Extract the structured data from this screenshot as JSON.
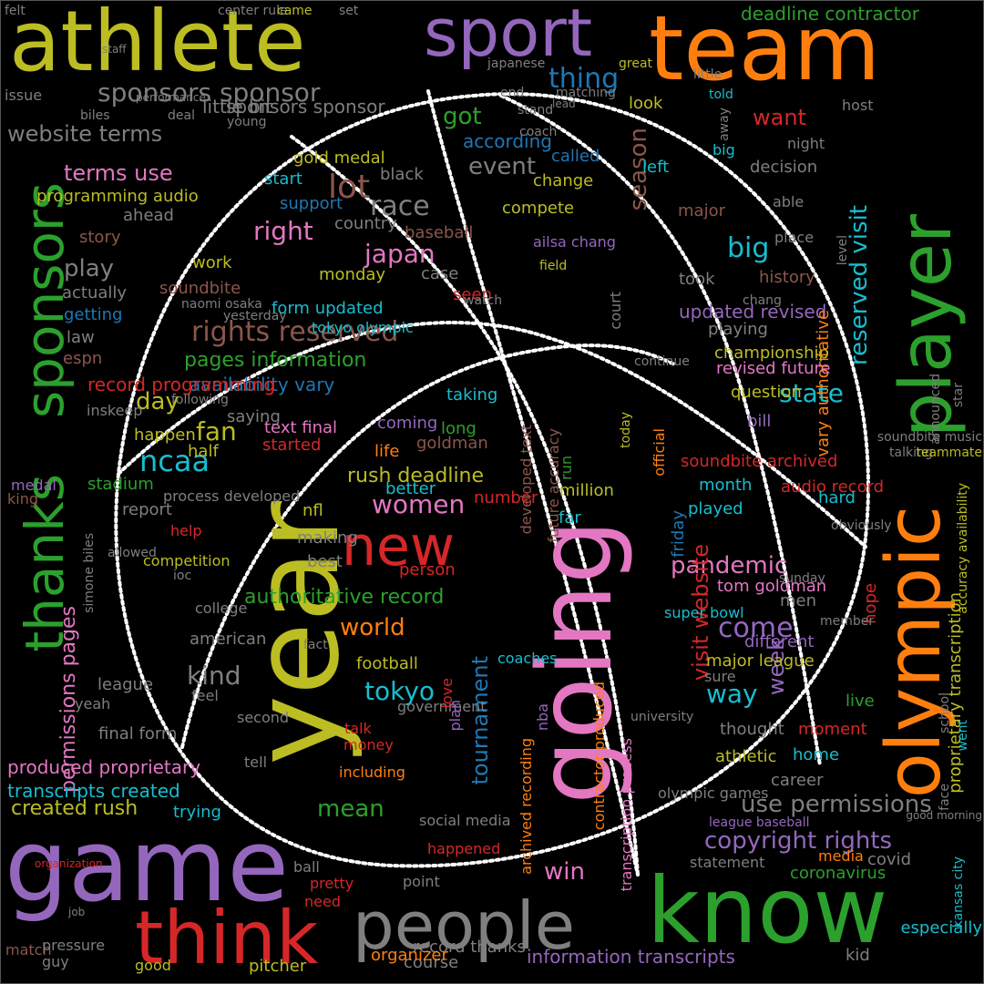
{
  "colors": {
    "background": "#000000",
    "outline": "#ffffff",
    "palette": [
      "#bcbd22",
      "#9467bd",
      "#ff7f0e",
      "#2ca02c",
      "#e377c2",
      "#d62728",
      "#7f7f7f",
      "#17becf",
      "#8c564b",
      "#1f77b4"
    ]
  },
  "mask_shape": "basketball",
  "words": [
    {
      "text": "athlete",
      "color": "#bcbd22"
    },
    {
      "text": "sport",
      "color": "#9467bd"
    },
    {
      "text": "team",
      "color": "#ff7f0e"
    },
    {
      "text": "player",
      "color": "#2ca02c"
    },
    {
      "text": "olympic",
      "color": "#ff7f0e"
    },
    {
      "text": "sponsors",
      "color": "#2ca02c"
    },
    {
      "text": "thanks",
      "color": "#2ca02c"
    },
    {
      "text": "year",
      "color": "#bcbd22"
    },
    {
      "text": "going",
      "color": "#e377c2"
    },
    {
      "text": "new",
      "color": "#d62728"
    },
    {
      "text": "game",
      "color": "#9467bd"
    },
    {
      "text": "think",
      "color": "#d62728"
    },
    {
      "text": "people",
      "color": "#7f7f7f"
    },
    {
      "text": "know",
      "color": "#2ca02c"
    },
    {
      "text": "sponsors sponsor",
      "color": "#7f7f7f"
    },
    {
      "text": "website terms",
      "color": "#7f7f7f"
    },
    {
      "text": "terms use",
      "color": "#e377c2"
    },
    {
      "text": "thing",
      "color": "#1f77b4"
    },
    {
      "text": "got",
      "color": "#2ca02c"
    },
    {
      "text": "want",
      "color": "#d62728"
    },
    {
      "text": "lot",
      "color": "#8c564b"
    },
    {
      "text": "race",
      "color": "#7f7f7f"
    },
    {
      "text": "event",
      "color": "#7f7f7f"
    },
    {
      "text": "right",
      "color": "#e377c2"
    },
    {
      "text": "japan",
      "color": "#e377c2"
    },
    {
      "text": "play",
      "color": "#7f7f7f"
    },
    {
      "text": "rights reserved",
      "color": "#8c564b"
    },
    {
      "text": "pages information",
      "color": "#2ca02c"
    },
    {
      "text": "availability vary",
      "color": "#1f77b4"
    },
    {
      "text": "day",
      "color": "#bcbd22"
    },
    {
      "text": "fan",
      "color": "#bcbd22"
    },
    {
      "text": "ncaa",
      "color": "#17becf"
    },
    {
      "text": "women",
      "color": "#e377c2"
    },
    {
      "text": "rush deadline",
      "color": "#bcbd22"
    },
    {
      "text": "season",
      "color": "#8c564b"
    },
    {
      "text": "reserved visit",
      "color": "#17becf"
    },
    {
      "text": "big",
      "color": "#17becf"
    },
    {
      "text": "state",
      "color": "#17becf"
    },
    {
      "text": "pandemic",
      "color": "#e377c2"
    },
    {
      "text": "world",
      "color": "#ff7f0e"
    },
    {
      "text": "come",
      "color": "#9467bd"
    },
    {
      "text": "kind",
      "color": "#7f7f7f"
    },
    {
      "text": "tokyo",
      "color": "#17becf"
    },
    {
      "text": "way",
      "color": "#17becf"
    },
    {
      "text": "week",
      "color": "#9467bd"
    },
    {
      "text": "tournament",
      "color": "#1f77b4"
    },
    {
      "text": "visit website",
      "color": "#d62728"
    },
    {
      "text": "permissions pages",
      "color": "#e377c2"
    },
    {
      "text": "copyright rights",
      "color": "#9467bd"
    },
    {
      "text": "use permissions",
      "color": "#7f7f7f"
    },
    {
      "text": "win",
      "color": "#e377c2"
    },
    {
      "text": "mean",
      "color": "#2ca02c"
    },
    {
      "text": "transcripts created",
      "color": "#17becf"
    },
    {
      "text": "created rush",
      "color": "#bcbd22"
    },
    {
      "text": "produced proprietary",
      "color": "#e377c2"
    },
    {
      "text": "information transcripts",
      "color": "#9467bd"
    },
    {
      "text": "proprietary transcription",
      "color": "#bcbd22"
    },
    {
      "text": "authoritative record",
      "color": "#2ca02c"
    },
    {
      "text": "updated revised",
      "color": "#9467bd"
    },
    {
      "text": "vary authoritative",
      "color": "#ff7f0e"
    },
    {
      "text": "record programming",
      "color": "#d62728"
    },
    {
      "text": "programming audio",
      "color": "#bcbd22"
    },
    {
      "text": "gold medal",
      "color": "#bcbd22"
    },
    {
      "text": "deadline contractor",
      "color": "#2ca02c"
    },
    {
      "text": "sponsors sponsor",
      "color": "#7f7f7f"
    },
    {
      "text": "little bit",
      "color": "#7f7f7f"
    },
    {
      "text": "look",
      "color": "#bcbd22"
    },
    {
      "text": "change",
      "color": "#bcbd22"
    },
    {
      "text": "according",
      "color": "#1f77b4"
    },
    {
      "text": "called",
      "color": "#1f77b4"
    },
    {
      "text": "left",
      "color": "#17becf"
    },
    {
      "text": "major",
      "color": "#8c564b"
    },
    {
      "text": "decision",
      "color": "#7f7f7f"
    },
    {
      "text": "compete",
      "color": "#bcbd22"
    },
    {
      "text": "baseball",
      "color": "#8c564b"
    },
    {
      "text": "country",
      "color": "#7f7f7f"
    },
    {
      "text": "support",
      "color": "#1f77b4"
    },
    {
      "text": "start",
      "color": "#17becf"
    },
    {
      "text": "black",
      "color": "#7f7f7f"
    },
    {
      "text": "ahead",
      "color": "#7f7f7f"
    },
    {
      "text": "story",
      "color": "#8c564b"
    },
    {
      "text": "actually",
      "color": "#7f7f7f"
    },
    {
      "text": "getting",
      "color": "#1f77b4"
    },
    {
      "text": "law",
      "color": "#7f7f7f"
    },
    {
      "text": "espn",
      "color": "#8c564b"
    },
    {
      "text": "inskeep",
      "color": "#7f7f7f"
    },
    {
      "text": "soundbite",
      "color": "#8c564b"
    },
    {
      "text": "work",
      "color": "#bcbd22"
    },
    {
      "text": "form updated",
      "color": "#17becf"
    },
    {
      "text": "tokyo olympic",
      "color": "#17becf"
    },
    {
      "text": "monday",
      "color": "#bcbd22"
    },
    {
      "text": "case",
      "color": "#7f7f7f"
    },
    {
      "text": "seen",
      "color": "#d62728"
    },
    {
      "text": "took",
      "color": "#7f7f7f"
    },
    {
      "text": "history",
      "color": "#8c564b"
    },
    {
      "text": "playing",
      "color": "#7f7f7f"
    },
    {
      "text": "championship",
      "color": "#bcbd22"
    },
    {
      "text": "revised future",
      "color": "#e377c2"
    },
    {
      "text": "question",
      "color": "#bcbd22"
    },
    {
      "text": "bill",
      "color": "#9467bd"
    },
    {
      "text": "audio record",
      "color": "#d62728"
    },
    {
      "text": "soundbite archived",
      "color": "#d62728"
    },
    {
      "text": "month",
      "color": "#17becf"
    },
    {
      "text": "hard",
      "color": "#17becf"
    },
    {
      "text": "played",
      "color": "#17becf"
    },
    {
      "text": "super bowl",
      "color": "#17becf"
    },
    {
      "text": "tom goldman",
      "color": "#e377c2"
    },
    {
      "text": "men",
      "color": "#7f7f7f"
    },
    {
      "text": "different",
      "color": "#9467bd"
    },
    {
      "text": "major league",
      "color": "#bcbd22"
    },
    {
      "text": "sure",
      "color": "#7f7f7f"
    },
    {
      "text": "thought",
      "color": "#7f7f7f"
    },
    {
      "text": "athletic",
      "color": "#bcbd22"
    },
    {
      "text": "home",
      "color": "#17becf"
    },
    {
      "text": "moment",
      "color": "#d62728"
    },
    {
      "text": "career",
      "color": "#7f7f7f"
    },
    {
      "text": "statement",
      "color": "#7f7f7f"
    },
    {
      "text": "media",
      "color": "#ff7f0e"
    },
    {
      "text": "covid",
      "color": "#7f7f7f"
    },
    {
      "text": "coronavirus",
      "color": "#2ca02c"
    },
    {
      "text": "live",
      "color": "#2ca02c"
    },
    {
      "text": "hope",
      "color": "#d62728"
    },
    {
      "text": "especially",
      "color": "#17becf"
    },
    {
      "text": "kid",
      "color": "#7f7f7f"
    },
    {
      "text": "record thanks",
      "color": "#7f7f7f"
    },
    {
      "text": "course",
      "color": "#7f7f7f"
    },
    {
      "text": "organizer",
      "color": "#ff7f0e"
    },
    {
      "text": "need",
      "color": "#d62728"
    },
    {
      "text": "pretty",
      "color": "#d62728"
    },
    {
      "text": "ball",
      "color": "#7f7f7f"
    },
    {
      "text": "point",
      "color": "#7f7f7f"
    },
    {
      "text": "happened",
      "color": "#d62728"
    },
    {
      "text": "social media",
      "color": "#7f7f7f"
    },
    {
      "text": "talk",
      "color": "#d62728"
    },
    {
      "text": "money",
      "color": "#d62728"
    },
    {
      "text": "final form",
      "color": "#7f7f7f"
    },
    {
      "text": "second",
      "color": "#7f7f7f"
    },
    {
      "text": "yeah",
      "color": "#7f7f7f"
    },
    {
      "text": "league",
      "color": "#7f7f7f"
    },
    {
      "text": "feel",
      "color": "#7f7f7f"
    },
    {
      "text": "american",
      "color": "#7f7f7f"
    },
    {
      "text": "college",
      "color": "#7f7f7f"
    },
    {
      "text": "king",
      "color": "#8c564b"
    },
    {
      "text": "medal",
      "color": "#9467bd"
    },
    {
      "text": "help",
      "color": "#d62728"
    },
    {
      "text": "report",
      "color": "#7f7f7f"
    },
    {
      "text": "competition",
      "color": "#bcbd22"
    },
    {
      "text": "stadium",
      "color": "#2ca02c"
    },
    {
      "text": "process developed",
      "color": "#7f7f7f"
    },
    {
      "text": "half",
      "color": "#bcbd22"
    },
    {
      "text": "happen",
      "color": "#bcbd22"
    },
    {
      "text": "saying",
      "color": "#7f7f7f"
    },
    {
      "text": "text final",
      "color": "#e377c2"
    },
    {
      "text": "started",
      "color": "#d62728"
    },
    {
      "text": "life",
      "color": "#ff7f0e"
    },
    {
      "text": "goldman",
      "color": "#8c564b"
    },
    {
      "text": "coming",
      "color": "#9467bd"
    },
    {
      "text": "taking",
      "color": "#17becf"
    },
    {
      "text": "long",
      "color": "#2ca02c"
    },
    {
      "text": "nfl",
      "color": "#bcbd22"
    },
    {
      "text": "making",
      "color": "#7f7f7f"
    },
    {
      "text": "best",
      "color": "#7f7f7f"
    },
    {
      "text": "person",
      "color": "#d62728"
    },
    {
      "text": "football",
      "color": "#bcbd22"
    },
    {
      "text": "better",
      "color": "#17becf"
    },
    {
      "text": "number",
      "color": "#d62728"
    },
    {
      "text": "far",
      "color": "#17becf"
    },
    {
      "text": "million",
      "color": "#bcbd22"
    },
    {
      "text": "run",
      "color": "#2ca02c"
    },
    {
      "text": "friday",
      "color": "#1f77b4"
    },
    {
      "text": "official",
      "color": "#ff7f0e"
    },
    {
      "text": "developed text",
      "color": "#8c564b"
    },
    {
      "text": "future accuracy",
      "color": "#8c564b"
    },
    {
      "text": "archived recording",
      "color": "#ff7f0e"
    },
    {
      "text": "transcription process",
      "color": "#e377c2"
    },
    {
      "text": "contractor produced",
      "color": "#ff7f0e"
    },
    {
      "text": "coaches",
      "color": "#17becf"
    },
    {
      "text": "government",
      "color": "#7f7f7f"
    },
    {
      "text": "love",
      "color": "#d62728"
    },
    {
      "text": "plan",
      "color": "#9467bd"
    },
    {
      "text": "nba",
      "color": "#9467bd"
    },
    {
      "text": "trying",
      "color": "#17becf"
    },
    {
      "text": "tell",
      "color": "#7f7f7f"
    },
    {
      "text": "including",
      "color": "#ff7f0e"
    },
    {
      "text": "match",
      "color": "#8c564b"
    },
    {
      "text": "pressure",
      "color": "#7f7f7f"
    },
    {
      "text": "guy",
      "color": "#7f7f7f"
    },
    {
      "text": "good",
      "color": "#bcbd22"
    },
    {
      "text": "pitcher",
      "color": "#bcbd22"
    },
    {
      "text": "olympic games",
      "color": "#7f7f7f"
    },
    {
      "text": "league baseball",
      "color": "#9467bd"
    },
    {
      "text": "star",
      "color": "#7f7f7f"
    },
    {
      "text": "announced",
      "color": "#7f7f7f"
    },
    {
      "text": "accuracy availability",
      "color": "#bcbd22"
    },
    {
      "text": "talking",
      "color": "#7f7f7f"
    },
    {
      "text": "soundbite music",
      "color": "#7f7f7f"
    },
    {
      "text": "teammate",
      "color": "#bcbd22"
    },
    {
      "text": "place",
      "color": "#7f7f7f"
    },
    {
      "text": "able",
      "color": "#7f7f7f"
    },
    {
      "text": "level",
      "color": "#7f7f7f"
    },
    {
      "text": "big",
      "color": "#17becf"
    },
    {
      "text": "night",
      "color": "#7f7f7f"
    },
    {
      "text": "away",
      "color": "#7f7f7f"
    },
    {
      "text": "host",
      "color": "#7f7f7f"
    },
    {
      "text": "told",
      "color": "#17becf"
    },
    {
      "text": "little",
      "color": "#7f7f7f"
    },
    {
      "text": "great",
      "color": "#bcbd22"
    },
    {
      "text": "japanese",
      "color": "#7f7f7f"
    },
    {
      "text": "stand",
      "color": "#7f7f7f"
    },
    {
      "text": "end",
      "color": "#7f7f7f"
    },
    {
      "text": "coach",
      "color": "#7f7f7f"
    },
    {
      "text": "matching",
      "color": "#7f7f7f"
    },
    {
      "text": "lead",
      "color": "#7f7f7f"
    },
    {
      "text": "center rule",
      "color": "#7f7f7f"
    },
    {
      "text": "came",
      "color": "#bcbd22"
    },
    {
      "text": "set",
      "color": "#7f7f7f"
    },
    {
      "text": "felt",
      "color": "#7f7f7f"
    },
    {
      "text": "issue",
      "color": "#7f7f7f"
    },
    {
      "text": "biles",
      "color": "#7f7f7f"
    },
    {
      "text": "young",
      "color": "#7f7f7f"
    },
    {
      "text": "deal",
      "color": "#7f7f7f"
    },
    {
      "text": "following",
      "color": "#7f7f7f"
    },
    {
      "text": "ailsa chang",
      "color": "#9467bd"
    },
    {
      "text": "field",
      "color": "#bcbd22"
    },
    {
      "text": "court",
      "color": "#7f7f7f"
    },
    {
      "text": "continue",
      "color": "#7f7f7f"
    },
    {
      "text": "today",
      "color": "#bcbd22"
    },
    {
      "text": "obviously",
      "color": "#7f7f7f"
    },
    {
      "text": "sunday",
      "color": "#7f7f7f"
    },
    {
      "text": "member",
      "color": "#7f7f7f"
    },
    {
      "text": "school",
      "color": "#7f7f7f"
    },
    {
      "text": "went",
      "color": "#17becf"
    },
    {
      "text": "university",
      "color": "#7f7f7f"
    },
    {
      "text": "chang",
      "color": "#7f7f7f"
    },
    {
      "text": "fact",
      "color": "#7f7f7f"
    },
    {
      "text": "watch",
      "color": "#7f7f7f"
    },
    {
      "text": "naomi osaka",
      "color": "#7f7f7f"
    },
    {
      "text": "face",
      "color": "#7f7f7f"
    },
    {
      "text": "kansas city",
      "color": "#17becf"
    },
    {
      "text": "simone biles",
      "color": "#7f7f7f"
    },
    {
      "text": "allowed",
      "color": "#7f7f7f"
    },
    {
      "text": "ioc",
      "color": "#7f7f7f"
    },
    {
      "text": "yesterday",
      "color": "#7f7f7f"
    },
    {
      "text": "good morning",
      "color": "#7f7f7f"
    },
    {
      "text": "organization",
      "color": "#d62728"
    },
    {
      "text": "job",
      "color": "#7f7f7f"
    },
    {
      "text": "staff",
      "color": "#7f7f7f"
    },
    {
      "text": "performance",
      "color": "#7f7f7f"
    }
  ]
}
